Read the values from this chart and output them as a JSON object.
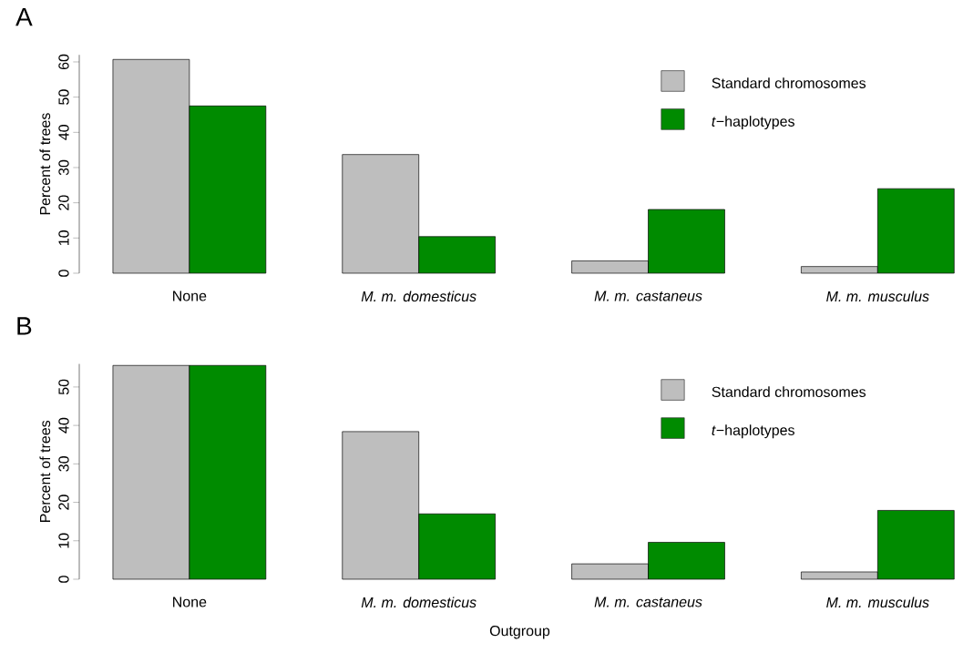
{
  "chart_data": [
    {
      "type": "bar",
      "title": "A",
      "ylabel": "Percent of trees",
      "categories": [
        "None",
        "*M. m. domesticus*",
        "*M. m. castaneus*",
        "*M. m. musculus*"
      ],
      "series": [
        {
          "name": "Standard chromosomes",
          "color": "#bebebe",
          "values": [
            60.7,
            33.7,
            3.5,
            1.9
          ]
        },
        {
          "name": "*t*−haplotypes",
          "color": "#008b00",
          "values": [
            47.5,
            10.4,
            18.1,
            24.0
          ]
        }
      ],
      "ylim": [
        0,
        62
      ],
      "yticks": [
        0,
        10,
        20,
        30,
        40,
        50,
        60
      ],
      "legend": "top right",
      "grid": false
    },
    {
      "type": "bar",
      "title": "B",
      "ylabel": "Percent of trees",
      "xlabel": "Outgroup",
      "categories": [
        "None",
        "*M. m. domesticus*",
        "*M. m. castaneus*",
        "*M. m. musculus*"
      ],
      "series": [
        {
          "name": "Standard chromosomes",
          "color": "#bebebe",
          "values": [
            55.6,
            38.4,
            4.0,
            1.9
          ]
        },
        {
          "name": "*t*−haplotypes",
          "color": "#008b00",
          "values": [
            55.6,
            17.0,
            9.6,
            17.9
          ]
        }
      ],
      "ylim": [
        0,
        56
      ],
      "yticks": [
        0,
        10,
        20,
        30,
        40,
        50
      ],
      "legend": "top right",
      "grid": false
    }
  ]
}
